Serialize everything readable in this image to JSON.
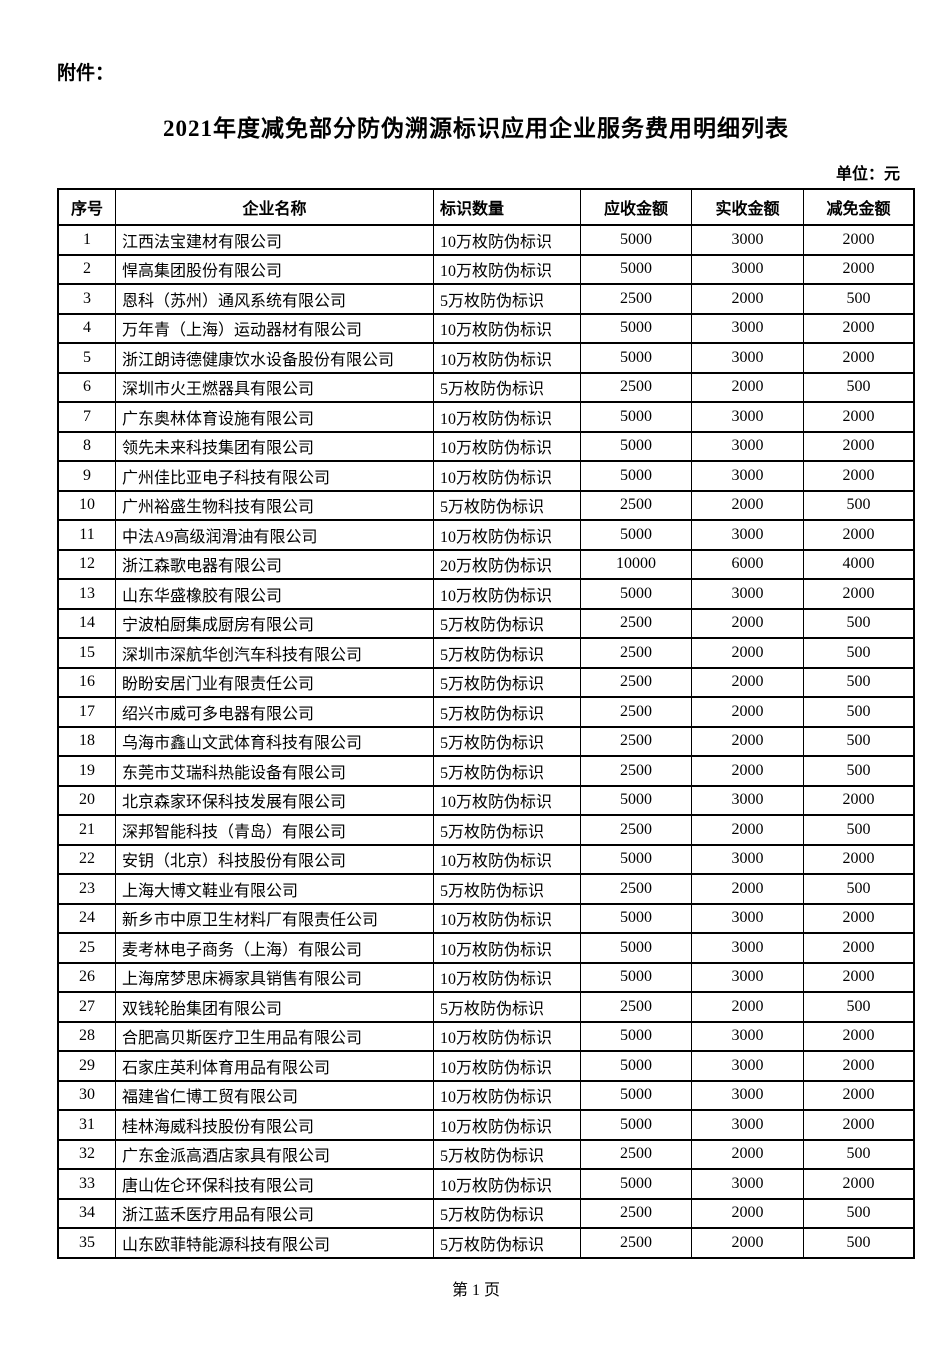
{
  "page": {
    "attachment_label": "附件：",
    "title": "2021年度减免部分防伪溯源标识应用企业服务费用明细列表",
    "unit_label": "单位：元",
    "footer": "第 1 页"
  },
  "table": {
    "headers": [
      "序号",
      "企业名称",
      "标识数量",
      "应收金额",
      "实收金额",
      "减免金额"
    ],
    "rows": [
      {
        "no": "1",
        "name": "江西法宝建材有限公司",
        "qty": "10万枚防伪标识",
        "receivable": "5000",
        "received": "3000",
        "waived": "2000"
      },
      {
        "no": "2",
        "name": "悍高集团股份有限公司",
        "qty": "10万枚防伪标识",
        "receivable": "5000",
        "received": "3000",
        "waived": "2000"
      },
      {
        "no": "3",
        "name": "恩科（苏州）通风系统有限公司",
        "qty": "5万枚防伪标识",
        "receivable": "2500",
        "received": "2000",
        "waived": "500"
      },
      {
        "no": "4",
        "name": "万年青（上海）运动器材有限公司",
        "qty": "10万枚防伪标识",
        "receivable": "5000",
        "received": "3000",
        "waived": "2000"
      },
      {
        "no": "5",
        "name": "浙江朗诗德健康饮水设备股份有限公司",
        "qty": "10万枚防伪标识",
        "receivable": "5000",
        "received": "3000",
        "waived": "2000"
      },
      {
        "no": "6",
        "name": "深圳市火王燃器具有限公司",
        "qty": "5万枚防伪标识",
        "receivable": "2500",
        "received": "2000",
        "waived": "500"
      },
      {
        "no": "7",
        "name": "广东奥林体育设施有限公司",
        "qty": "10万枚防伪标识",
        "receivable": "5000",
        "received": "3000",
        "waived": "2000"
      },
      {
        "no": "8",
        "name": "领先未来科技集团有限公司",
        "qty": "10万枚防伪标识",
        "receivable": "5000",
        "received": "3000",
        "waived": "2000"
      },
      {
        "no": "9",
        "name": "广州佳比亚电子科技有限公司",
        "qty": "10万枚防伪标识",
        "receivable": "5000",
        "received": "3000",
        "waived": "2000"
      },
      {
        "no": "10",
        "name": "广州裕盛生物科技有限公司",
        "qty": "5万枚防伪标识",
        "receivable": "2500",
        "received": "2000",
        "waived": "500"
      },
      {
        "no": "11",
        "name": "中法A9高级润滑油有限公司",
        "qty": "10万枚防伪标识",
        "receivable": "5000",
        "received": "3000",
        "waived": "2000"
      },
      {
        "no": "12",
        "name": "浙江森歌电器有限公司",
        "qty": "20万枚防伪标识",
        "receivable": "10000",
        "received": "6000",
        "waived": "4000"
      },
      {
        "no": "13",
        "name": "山东华盛橡胶有限公司",
        "qty": "10万枚防伪标识",
        "receivable": "5000",
        "received": "3000",
        "waived": "2000"
      },
      {
        "no": "14",
        "name": "宁波柏厨集成厨房有限公司",
        "qty": "5万枚防伪标识",
        "receivable": "2500",
        "received": "2000",
        "waived": "500"
      },
      {
        "no": "15",
        "name": "深圳市深航华创汽车科技有限公司",
        "qty": "5万枚防伪标识",
        "receivable": "2500",
        "received": "2000",
        "waived": "500"
      },
      {
        "no": "16",
        "name": "盼盼安居门业有限责任公司",
        "qty": "5万枚防伪标识",
        "receivable": "2500",
        "received": "2000",
        "waived": "500"
      },
      {
        "no": "17",
        "name": "绍兴市威可多电器有限公司",
        "qty": "5万枚防伪标识",
        "receivable": "2500",
        "received": "2000",
        "waived": "500"
      },
      {
        "no": "18",
        "name": "乌海市鑫山文武体育科技有限公司",
        "qty": "5万枚防伪标识",
        "receivable": "2500",
        "received": "2000",
        "waived": "500"
      },
      {
        "no": "19",
        "name": "东莞市艾瑞科热能设备有限公司",
        "qty": "5万枚防伪标识",
        "receivable": "2500",
        "received": "2000",
        "waived": "500"
      },
      {
        "no": "20",
        "name": "北京森家环保科技发展有限公司",
        "qty": "10万枚防伪标识",
        "receivable": "5000",
        "received": "3000",
        "waived": "2000"
      },
      {
        "no": "21",
        "name": "深邦智能科技（青岛）有限公司",
        "qty": "5万枚防伪标识",
        "receivable": "2500",
        "received": "2000",
        "waived": "500"
      },
      {
        "no": "22",
        "name": "安钥（北京）科技股份有限公司",
        "qty": "10万枚防伪标识",
        "receivable": "5000",
        "received": "3000",
        "waived": "2000"
      },
      {
        "no": "23",
        "name": "上海大博文鞋业有限公司",
        "qty": "5万枚防伪标识",
        "receivable": "2500",
        "received": "2000",
        "waived": "500"
      },
      {
        "no": "24",
        "name": "新乡市中原卫生材料厂有限责任公司",
        "qty": "10万枚防伪标识",
        "receivable": "5000",
        "received": "3000",
        "waived": "2000"
      },
      {
        "no": "25",
        "name": "麦考林电子商务（上海）有限公司",
        "qty": "10万枚防伪标识",
        "receivable": "5000",
        "received": "3000",
        "waived": "2000"
      },
      {
        "no": "26",
        "name": "上海席梦思床褥家具销售有限公司",
        "qty": "10万枚防伪标识",
        "receivable": "5000",
        "received": "3000",
        "waived": "2000"
      },
      {
        "no": "27",
        "name": "双钱轮胎集团有限公司",
        "qty": "5万枚防伪标识",
        "receivable": "2500",
        "received": "2000",
        "waived": "500"
      },
      {
        "no": "28",
        "name": "合肥高贝斯医疗卫生用品有限公司",
        "qty": "10万枚防伪标识",
        "receivable": "5000",
        "received": "3000",
        "waived": "2000"
      },
      {
        "no": "29",
        "name": "石家庄英利体育用品有限公司",
        "qty": "10万枚防伪标识",
        "receivable": "5000",
        "received": "3000",
        "waived": "2000"
      },
      {
        "no": "30",
        "name": "福建省仁博工贸有限公司",
        "qty": "10万枚防伪标识",
        "receivable": "5000",
        "received": "3000",
        "waived": "2000"
      },
      {
        "no": "31",
        "name": "桂林海威科技股份有限公司",
        "qty": "10万枚防伪标识",
        "receivable": "5000",
        "received": "3000",
        "waived": "2000"
      },
      {
        "no": "32",
        "name": "广东金派高酒店家具有限公司",
        "qty": "5万枚防伪标识",
        "receivable": "2500",
        "received": "2000",
        "waived": "500"
      },
      {
        "no": "33",
        "name": "唐山佐仑环保科技有限公司",
        "qty": "10万枚防伪标识",
        "receivable": "5000",
        "received": "3000",
        "waived": "2000"
      },
      {
        "no": "34",
        "name": "浙江蓝禾医疗用品有限公司",
        "qty": "5万枚防伪标识",
        "receivable": "2500",
        "received": "2000",
        "waived": "500"
      },
      {
        "no": "35",
        "name": "山东欧菲特能源科技有限公司",
        "qty": "5万枚防伪标识",
        "receivable": "2500",
        "received": "2000",
        "waived": "500"
      }
    ]
  }
}
